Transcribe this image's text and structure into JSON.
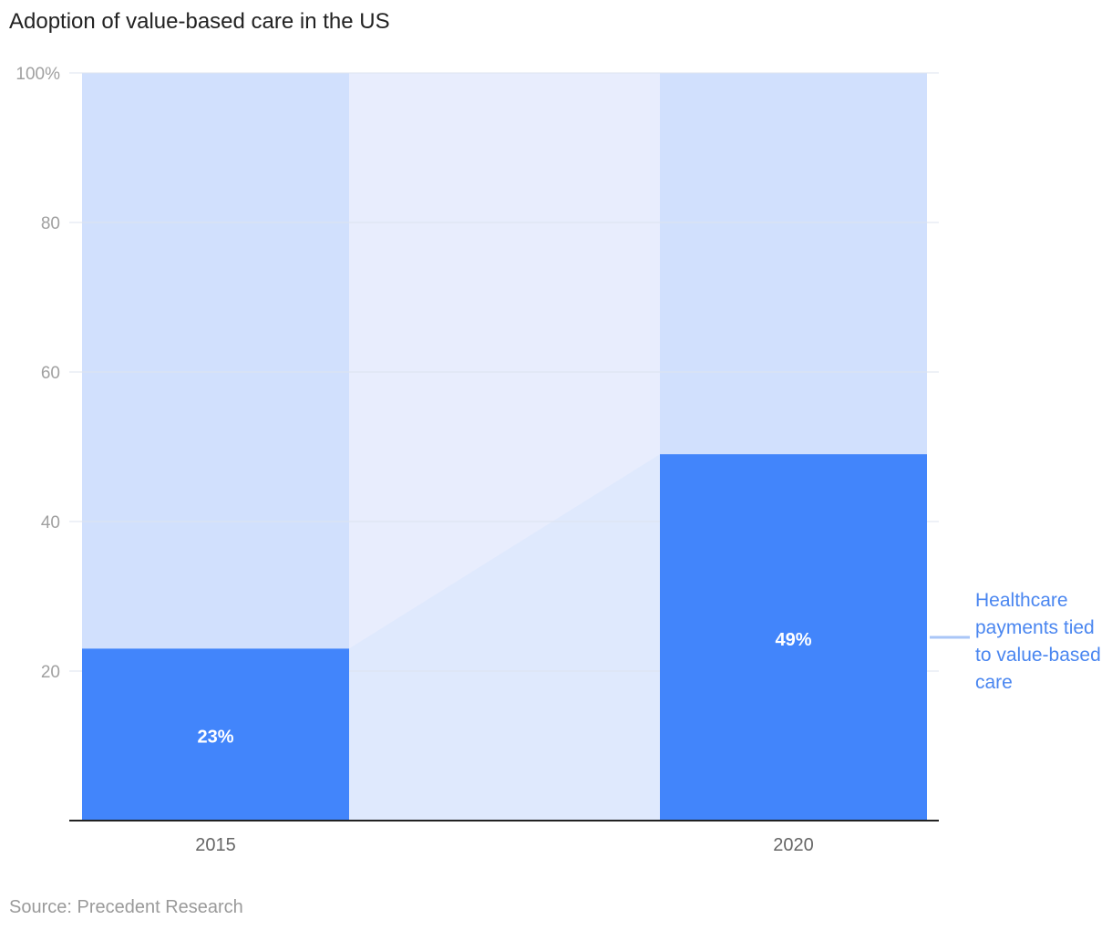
{
  "title": "Adoption of value-based care in the US",
  "source": "Source: Precedent Research",
  "colors": {
    "bar": "#4285fb",
    "bar_remainder": "#d1e0fd",
    "gap_fill": "#e8edfd",
    "gap_fill_low": "#dfe9fd",
    "grid": "#dde3ef",
    "axis": "#222222",
    "legend": "#4a86f0"
  },
  "chart_data": {
    "type": "bar",
    "categories": [
      "2015",
      "2020"
    ],
    "series": [
      {
        "name": "Healthcare payments tied to value-based care",
        "values": [
          23,
          49
        ],
        "data_labels": [
          "23%",
          "49%"
        ]
      }
    ],
    "ylim": [
      0,
      100
    ],
    "yticks": [
      20,
      40,
      60,
      80,
      100
    ],
    "ytick_labels": [
      "20",
      "40",
      "60",
      "80",
      "100%"
    ],
    "grid": true,
    "legend": "right",
    "xlabel": "",
    "ylabel": ""
  }
}
